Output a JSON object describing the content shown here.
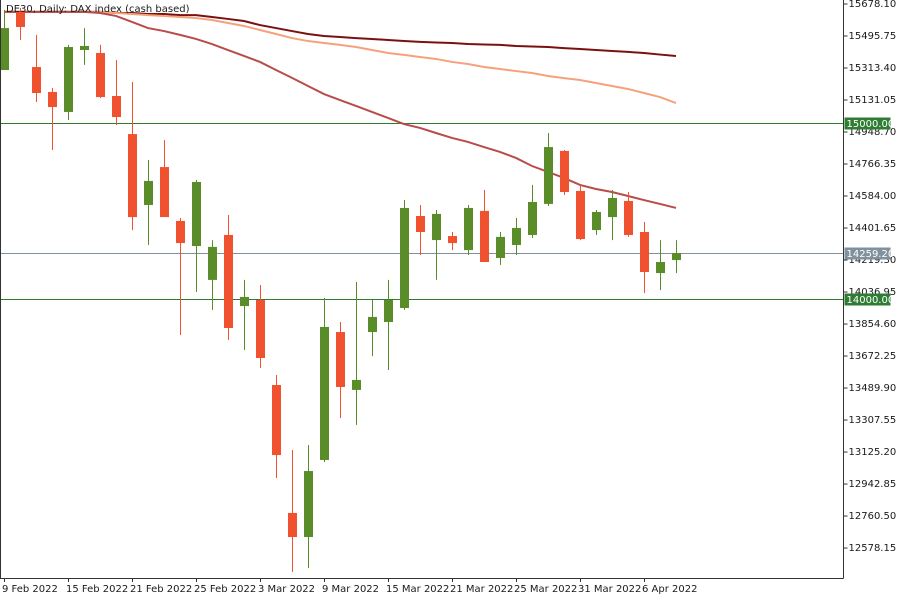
{
  "chart_data": {
    "type": "candlestick",
    "title": "DE30, Daily:  DAX index (cash based)",
    "categories": [
      "9 Feb 2022",
      null,
      null,
      null,
      "15 Feb 2022",
      null,
      null,
      null,
      "21 Feb 2022",
      null,
      null,
      null,
      "25 Feb 2022",
      null,
      null,
      null,
      "3 Mar 2022",
      null,
      null,
      null,
      "9 Mar 2022",
      null,
      null,
      null,
      "15 Mar 2022",
      null,
      null,
      null,
      "21 Mar 2022",
      null,
      null,
      null,
      "25 Mar 2022",
      null,
      null,
      null,
      "31 Mar 2022",
      null,
      null,
      null,
      "6 Apr 2022",
      null,
      null
    ],
    "open": [
      15302,
      15633,
      15319,
      15177,
      15063,
      15416,
      15399,
      15154,
      14937,
      14533,
      14749,
      14442,
      14299,
      14106,
      14362,
      13957,
      13992,
      13507,
      12778,
      12641,
      13080,
      13809,
      13479,
      13809,
      13866,
      13946,
      14470,
      14333,
      14356,
      14276,
      14499,
      14231,
      14305,
      14362,
      14539,
      14841,
      14613,
      14390,
      14464,
      14556,
      14379,
      14145,
      14219
    ],
    "high": [
      15644,
      15655,
      15502,
      15200,
      15445,
      15541,
      15445,
      15359,
      15234,
      14789,
      14903,
      14459,
      14675,
      14333,
      14476,
      14106,
      14077,
      13564,
      13137,
      13165,
      14003,
      13866,
      14094,
      13992,
      14106,
      14561,
      14533,
      14504,
      14379,
      14533,
      14618,
      14379,
      14459,
      14647,
      14943,
      14846,
      14647,
      14504,
      14618,
      14607,
      14436,
      14333,
      14333
    ],
    "low": [
      15302,
      15473,
      15120,
      14846,
      15017,
      15331,
      15142,
      14989,
      14390,
      14305,
      14476,
      13792,
      14037,
      13935,
      13764,
      13707,
      13604,
      12977,
      12442,
      12464,
      13068,
      13319,
      13279,
      13672,
      13593,
      13935,
      14248,
      14106,
      14276,
      14248,
      14208,
      14191,
      14248,
      14345,
      14527,
      14590,
      14333,
      14362,
      14333,
      14351,
      14031,
      14048,
      14145
    ],
    "close": [
      15541,
      15547,
      15171,
      15091,
      15433,
      15439,
      15148,
      15034,
      14464,
      14670,
      14464,
      14316,
      14664,
      14294,
      13832,
      14009,
      13661,
      13108,
      12641,
      13017,
      13838,
      13496,
      13536,
      13895,
      13992,
      14516,
      14379,
      14482,
      14316,
      14516,
      14208,
      14351,
      14402,
      14550,
      14863,
      14607,
      14339,
      14493,
      14573,
      14362,
      14151,
      14208,
      14259.2
    ],
    "up_color": "#5b8c2a",
    "down_color": "#f0512e",
    "lines": [
      {
        "color": "#7b1010",
        "values": [
          15633,
          15633,
          15633,
          15633,
          15633,
          15633,
          15633,
          15627,
          15627,
          15621,
          15621,
          15615,
          15615,
          15604,
          15593,
          15581,
          15558,
          15541,
          15524,
          15507,
          15496,
          15490,
          15484,
          15479,
          15473,
          15467,
          15462,
          15459,
          15456,
          15450,
          15447,
          15445,
          15439,
          15436,
          15433,
          15427,
          15422,
          15416,
          15410,
          15405,
          15399,
          15390,
          15382
        ]
      },
      {
        "color": "#f5a27c",
        "values": [
          15633,
          15633,
          15633,
          15633,
          15633,
          15633,
          15633,
          15627,
          15621,
          15615,
          15610,
          15604,
          15598,
          15587,
          15570,
          15553,
          15530,
          15507,
          15484,
          15467,
          15456,
          15445,
          15433,
          15416,
          15399,
          15388,
          15376,
          15365,
          15348,
          15336,
          15319,
          15308,
          15296,
          15285,
          15268,
          15256,
          15245,
          15228,
          15211,
          15194,
          15171,
          15148,
          15114
        ]
      },
      {
        "color": "#b84c4a",
        "values": [
          15633,
          15633,
          15633,
          15633,
          15633,
          15633,
          15627,
          15610,
          15576,
          15541,
          15524,
          15502,
          15479,
          15450,
          15416,
          15382,
          15348,
          15302,
          15257,
          15211,
          15165,
          15131,
          15097,
          15063,
          15029,
          14994,
          14972,
          14943,
          14915,
          14892,
          14863,
          14835,
          14801,
          14755,
          14721,
          14687,
          14647,
          14624,
          14607,
          14584,
          14561,
          14539,
          14516
        ]
      }
    ],
    "hlines": [
      {
        "value": 15000,
        "label": "15000.00",
        "color": "#2e7d32"
      },
      {
        "value": 14259.2,
        "label": "14259.20",
        "color": "#7f909f"
      },
      {
        "value": 14000,
        "label": "14000.00",
        "color": "#2e7d32"
      }
    ],
    "ylim": [
      12407.5,
      15700.9
    ],
    "yticks": [
      {
        "value": 15678.1,
        "label": "15678.10"
      },
      15495.75,
      {
        "value": 15313.4,
        "label": "15313.40"
      },
      15131.05,
      {
        "value": 14948.7,
        "label": "14948.70"
      },
      14766.35,
      {
        "value": 14584,
        "label": "14584.00"
      },
      14401.65,
      {
        "value": 14219.3,
        "label": "14219.30"
      },
      14036.95,
      {
        "value": 13854.6,
        "label": "13854.60"
      },
      13672.25,
      {
        "value": 13489.9,
        "label": "13489.90"
      },
      13307.55,
      {
        "value": 13125.2,
        "label": "13125.20"
      },
      12942.85,
      {
        "value": 12760.5,
        "label": "12760.50"
      },
      12578.15
    ]
  }
}
